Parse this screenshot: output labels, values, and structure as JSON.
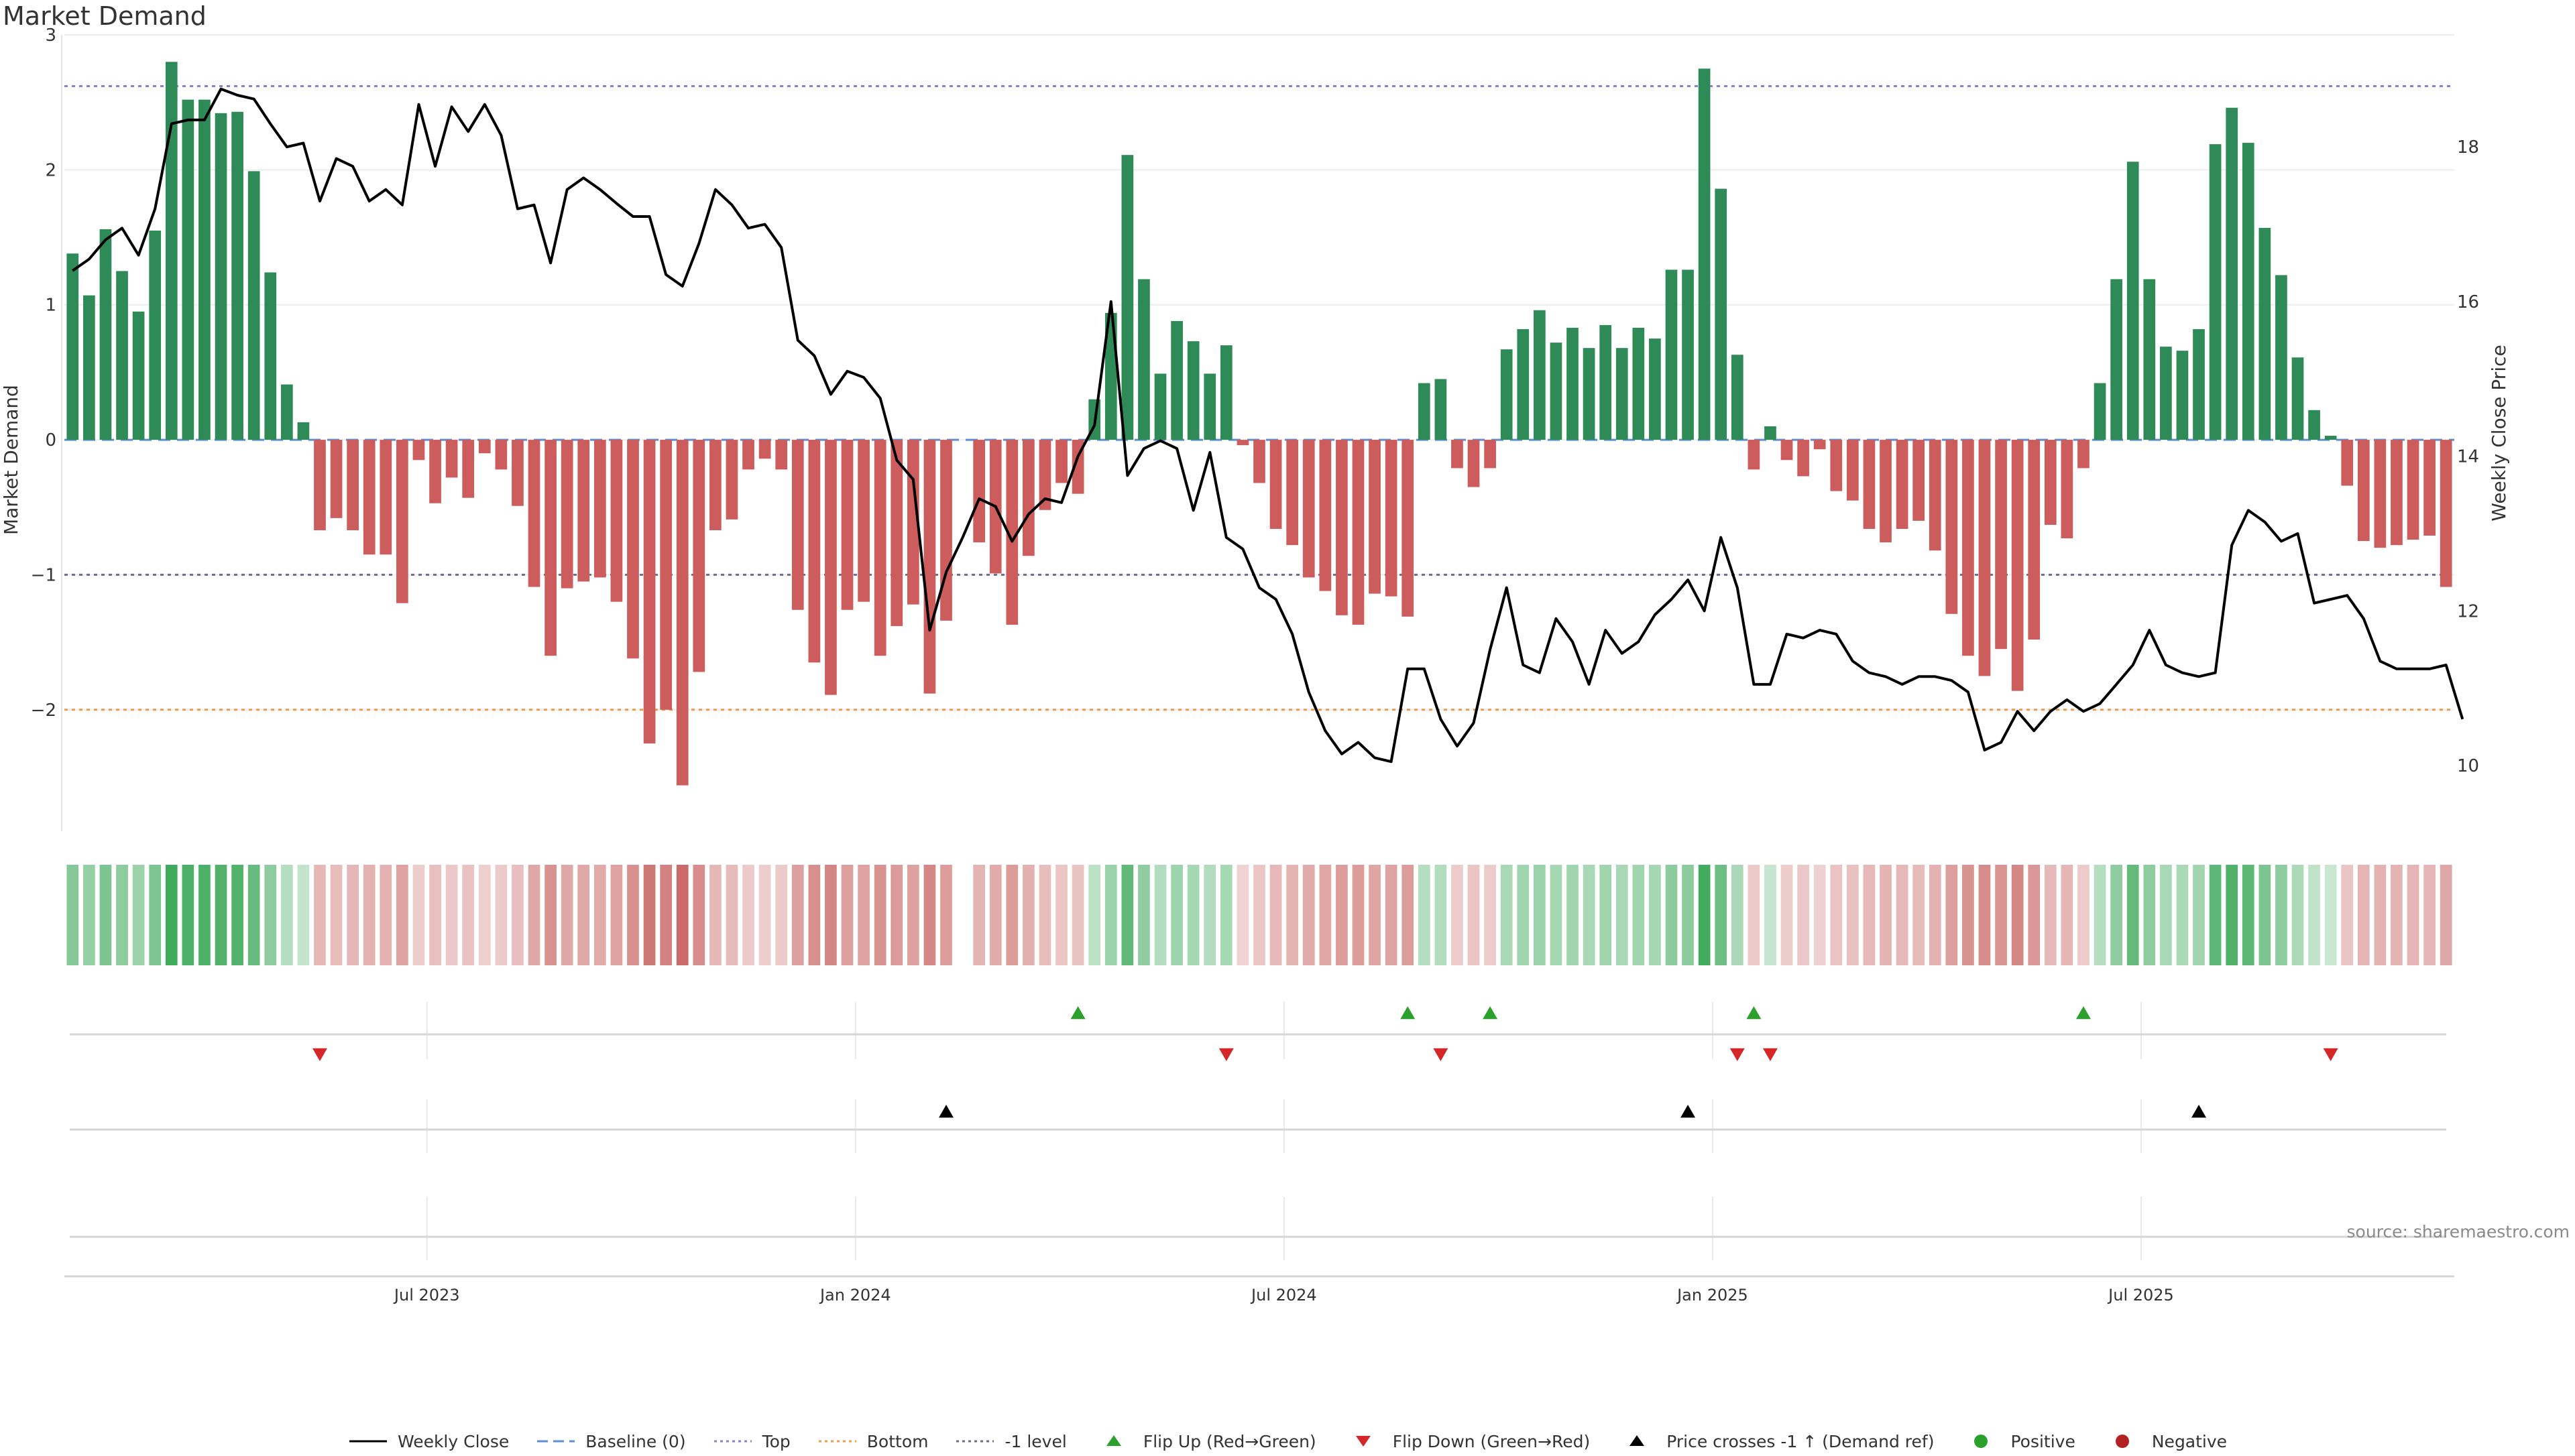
{
  "chart_data": {
    "type": "bar",
    "title": "Market Demand",
    "ylabel_left": "Market Demand",
    "ylabel_right": "Weekly Close Price",
    "ylim_left": [
      -2.9,
      3.0
    ],
    "ylim_right": [
      9.15,
      19.45
    ],
    "yticks_left": [
      3,
      2,
      1,
      0,
      -1,
      -2
    ],
    "ytick_labels_left": [
      "3",
      "2",
      "1",
      "0",
      "−1",
      "−2"
    ],
    "yticks_right": [
      18,
      16,
      14,
      12,
      10
    ],
    "ytick_labels_right": [
      "18",
      "16",
      "14",
      "12",
      "10"
    ],
    "x_start_week": 0,
    "x_end_week": 143,
    "x_tick_weeks": [
      22,
      48,
      74,
      100,
      126
    ],
    "x_tick_labels": [
      "Jul 2023",
      "Jan 2024",
      "Jul 2024",
      "Jan 2025",
      "Jul 2025"
    ],
    "reference_lines": [
      {
        "name": "Baseline (0)",
        "value": 0,
        "color": "#5b8fd6",
        "style": "dashed"
      },
      {
        "name": "Top",
        "value": 2.62,
        "color": "#8a7fce",
        "style": "dotted"
      },
      {
        "name": "Bottom",
        "value": -2.0,
        "color": "#f2994a",
        "style": "dotted"
      },
      {
        "name": "-1 level",
        "value": -1.0,
        "color": "#6d6d8a",
        "style": "dotted"
      }
    ],
    "series": [
      {
        "name": "Market Demand",
        "type": "bar",
        "positive_color": "#2e8b57",
        "negative_color": "#cd5c5c",
        "values": [
          1.38,
          1.07,
          1.56,
          1.25,
          0.95,
          1.55,
          2.8,
          2.52,
          2.52,
          2.42,
          2.43,
          1.99,
          1.24,
          0.41,
          0.13,
          -0.67,
          -0.58,
          -0.67,
          -0.85,
          -0.85,
          -1.21,
          -0.15,
          -0.47,
          -0.28,
          -0.43,
          -0.1,
          -0.22,
          -0.49,
          -1.09,
          -1.6,
          -1.1,
          -1.05,
          -1.02,
          -1.2,
          -1.62,
          -2.25,
          -2.0,
          -2.56,
          -1.72,
          -0.67,
          -0.59,
          -0.22,
          -0.14,
          -0.22,
          -1.26,
          -1.65,
          -1.89,
          -1.26,
          -1.2,
          -1.6,
          -1.38,
          -1.22,
          -1.88,
          -1.34,
          null,
          -0.76,
          -0.99,
          -1.37,
          -0.86,
          -0.52,
          -0.32,
          -0.4,
          0.3,
          0.94,
          2.11,
          1.19,
          0.49,
          0.88,
          0.73,
          0.49,
          0.7,
          -0.04,
          -0.32,
          -0.66,
          -0.78,
          -1.02,
          -1.12,
          -1.3,
          -1.37,
          -1.14,
          -1.16,
          -1.31,
          0.42,
          0.45,
          -0.21,
          -0.35,
          -0.21,
          0.67,
          0.82,
          0.96,
          0.72,
          0.83,
          0.68,
          0.85,
          0.68,
          0.83,
          0.75,
          1.26,
          1.26,
          2.75,
          1.86,
          0.63,
          -0.22,
          0.1,
          -0.15,
          -0.27,
          -0.07,
          -0.38,
          -0.45,
          -0.66,
          -0.76,
          -0.66,
          -0.6,
          -0.82,
          -1.29,
          -1.6,
          -1.75,
          -1.55,
          -1.86,
          -1.48,
          -0.63,
          -0.73,
          -0.21,
          0.42,
          1.19,
          2.06,
          1.19,
          0.69,
          0.66,
          0.82,
          2.19,
          2.46,
          2.2,
          1.57,
          1.22,
          0.61,
          0.22,
          0.03,
          -0.34,
          -0.75,
          -0.8,
          -0.78,
          -0.74,
          -0.71,
          -1.09
        ]
      },
      {
        "name": "Weekly Close",
        "type": "line",
        "axis": "right",
        "color": "#000000",
        "values": [
          16.4,
          16.55,
          16.8,
          16.95,
          16.6,
          17.2,
          18.3,
          18.35,
          18.35,
          18.75,
          18.67,
          18.62,
          18.3,
          18.0,
          18.05,
          17.3,
          17.85,
          17.75,
          17.3,
          17.45,
          17.25,
          18.55,
          17.75,
          18.52,
          18.2,
          18.55,
          18.15,
          17.2,
          17.25,
          16.5,
          17.45,
          17.6,
          17.45,
          17.27,
          17.1,
          17.1,
          16.35,
          16.2,
          16.75,
          17.45,
          17.25,
          16.95,
          17.0,
          16.7,
          15.5,
          15.3,
          14.8,
          15.1,
          15.02,
          14.75,
          13.95,
          13.7,
          11.75,
          12.5,
          12.95,
          13.45,
          13.35,
          12.9,
          13.25,
          13.45,
          13.4,
          14.0,
          14.4,
          16.0,
          13.75,
          14.1,
          14.2,
          14.1,
          13.3,
          14.05,
          12.95,
          12.8,
          12.3,
          12.15,
          11.7,
          10.95,
          10.45,
          10.15,
          10.3,
          10.1,
          10.05,
          11.25,
          11.25,
          10.6,
          10.25,
          10.55,
          11.5,
          12.3,
          11.3,
          11.2,
          11.9,
          11.6,
          11.05,
          11.75,
          11.45,
          11.6,
          11.95,
          12.15,
          12.4,
          12.0,
          12.95,
          12.3,
          11.05,
          11.05,
          11.7,
          11.65,
          11.75,
          11.7,
          11.35,
          11.2,
          11.15,
          11.05,
          11.15,
          11.15,
          11.1,
          10.95,
          10.2,
          10.3,
          10.7,
          10.45,
          10.7,
          10.85,
          10.7,
          10.8,
          11.05,
          11.3,
          11.75,
          11.3,
          11.2,
          11.15,
          11.2,
          12.85,
          13.3,
          13.15,
          12.9,
          13.0,
          12.1,
          12.15,
          12.2,
          11.9,
          11.35,
          11.25,
          11.25,
          11.25,
          11.3,
          10.6
        ]
      }
    ],
    "strip": {
      "name": "Demand intensity strip",
      "positive_color": "#2e8b57",
      "negative_color": "#cd5c5c"
    },
    "markers": {
      "flip_up_weeks": [
        61,
        81,
        86,
        102,
        122
      ],
      "flip_down_weeks": [
        15,
        70,
        83,
        101,
        103,
        137
      ],
      "price_cross_weeks": [
        53,
        98,
        129
      ],
      "flip_up_color": "#2ca02c",
      "flip_down_color": "#d62728",
      "price_cross_color": "#000000"
    }
  },
  "legend": {
    "items": [
      {
        "label": "Weekly Close",
        "kind": "solid-line",
        "color": "#000000"
      },
      {
        "label": "Baseline (0)",
        "kind": "dashed-line",
        "color": "#5b8fd6"
      },
      {
        "label": "Top",
        "kind": "dotted-line",
        "color": "#8a7fce"
      },
      {
        "label": "Bottom",
        "kind": "dotted-line",
        "color": "#f2994a"
      },
      {
        "label": "-1 level",
        "kind": "dotted-line",
        "color": "#6d6d8a"
      },
      {
        "label": "Flip Up (Red→Green)",
        "kind": "triangle-up",
        "color": "#2ca02c"
      },
      {
        "label": "Flip Down (Green→Red)",
        "kind": "triangle-down",
        "color": "#d62728"
      },
      {
        "label": "Price crosses -1 ↑ (Demand ref)",
        "kind": "triangle-up",
        "color": "#000000"
      },
      {
        "label": "Positive",
        "kind": "dot",
        "color": "#2ca02c"
      },
      {
        "label": "Negative",
        "kind": "dot",
        "color": "#b22222"
      }
    ]
  },
  "source": "source: sharemaestro.com"
}
